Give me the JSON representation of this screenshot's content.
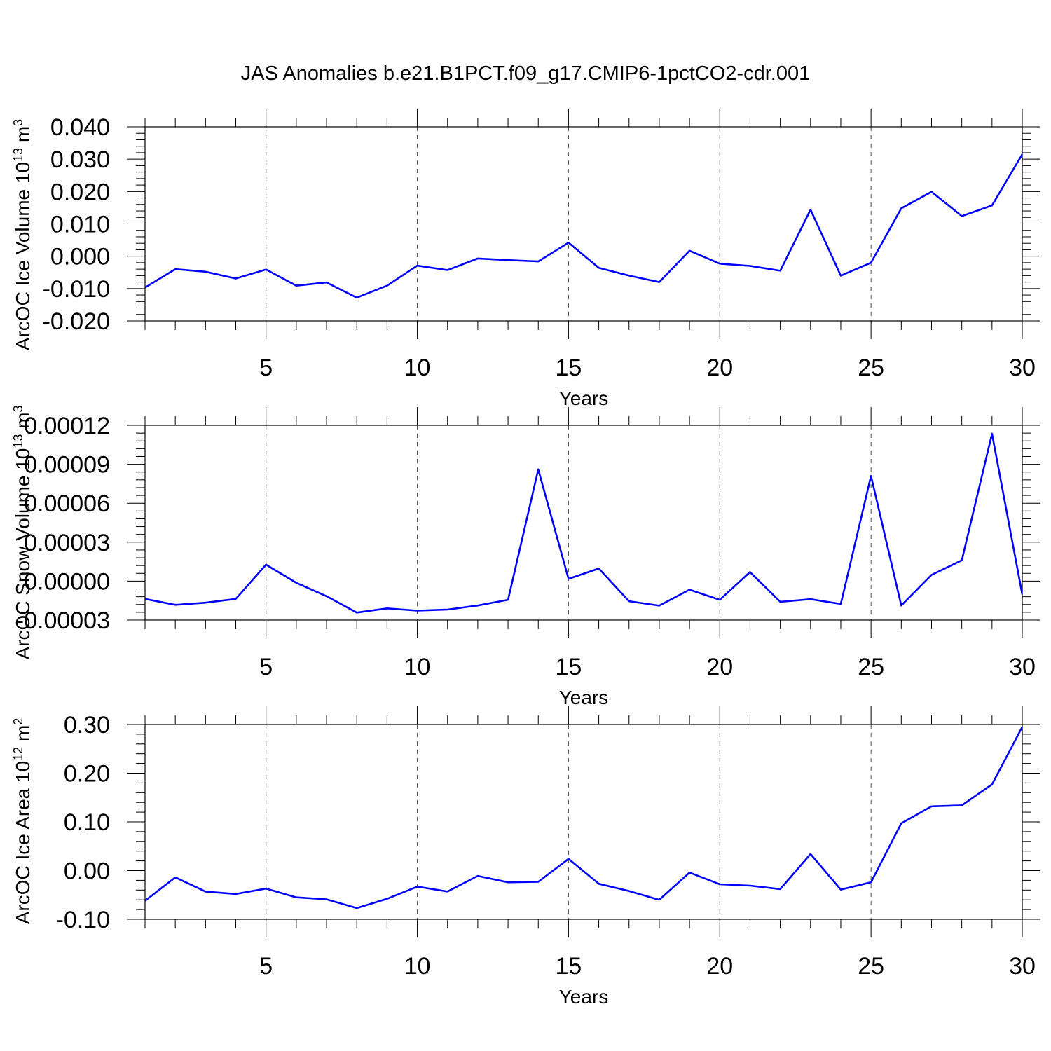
{
  "title": "JAS Anomalies b.e21.B1PCT.f09_g17.CMIP6-1pctCO2-cdr.001",
  "colors": {
    "line": "#0000ff",
    "axis": "#000000"
  },
  "chart_data": [
    {
      "type": "line",
      "ylabel": "ArcOC Ice Volume 10",
      "ylabel_sup": "13",
      "ylabel_unit": " m",
      "ylabel_unit_sup": "3",
      "xlabel": "Years",
      "xlim": [
        1,
        30
      ],
      "ylim": [
        -0.02,
        0.04
      ],
      "xticks": [
        5,
        10,
        15,
        20,
        25,
        30
      ],
      "xtick_labels": [
        "5",
        "10",
        "15",
        "20",
        "25",
        "30"
      ],
      "yticks": [
        -0.02,
        -0.01,
        0.0,
        0.01,
        0.02,
        0.03,
        0.04
      ],
      "ytick_labels": [
        "-0.020",
        "-0.010",
        "0.000",
        "0.010",
        "0.020",
        "0.030",
        "0.040"
      ],
      "grid": "vertical dashed",
      "x": [
        1,
        2,
        3,
        4,
        5,
        6,
        7,
        8,
        9,
        10,
        11,
        12,
        13,
        14,
        15,
        16,
        17,
        18,
        19,
        20,
        21,
        22,
        23,
        24,
        25,
        26,
        27,
        28,
        29,
        30
      ],
      "y": [
        -0.0097,
        -0.004,
        -0.0048,
        -0.0069,
        -0.0041,
        -0.0091,
        -0.0081,
        -0.0128,
        -0.0091,
        -0.0029,
        -0.0043,
        -0.0007,
        -0.0012,
        -0.0016,
        0.0042,
        -0.0036,
        -0.006,
        -0.008,
        0.0017,
        -0.0023,
        -0.003,
        -0.0045,
        0.0144,
        -0.006,
        -0.002,
        0.0148,
        0.0199,
        0.0124,
        0.0157,
        0.0315
      ]
    },
    {
      "type": "line",
      "ylabel": "ArcOC Snow Volume 10",
      "ylabel_sup": "13",
      "ylabel_unit": " m",
      "ylabel_unit_sup": "3",
      "xlabel": "Years",
      "xlim": [
        1,
        30
      ],
      "ylim": [
        -3e-05,
        0.00012
      ],
      "xticks": [
        5,
        10,
        15,
        20,
        25,
        30
      ],
      "xtick_labels": [
        "5",
        "10",
        "15",
        "20",
        "25",
        "30"
      ],
      "yticks": [
        -3e-05,
        0.0,
        3e-05,
        6e-05,
        9e-05,
        0.00012
      ],
      "ytick_labels": [
        "-0.00003",
        "0.00000",
        "0.00003",
        "0.00006",
        "0.00009",
        "0.00012"
      ],
      "grid": "vertical dashed",
      "x": [
        1,
        2,
        3,
        4,
        5,
        6,
        7,
        8,
        9,
        10,
        11,
        12,
        13,
        14,
        15,
        16,
        17,
        18,
        19,
        20,
        21,
        22,
        23,
        24,
        25,
        26,
        27,
        28,
        29,
        30
      ],
      "y": [
        -1.37e-05,
        -1.83e-05,
        -1.66e-05,
        -1.37e-05,
        1.27e-05,
        -1.3e-06,
        -1.16e-05,
        -2.42e-05,
        -2.1e-05,
        -2.27e-05,
        -2.19e-05,
        -1.88e-05,
        -1.44e-05,
        8.6e-05,
        1.8e-06,
        9.7e-06,
        -1.55e-05,
        -1.89e-05,
        -6.6e-06,
        -1.44e-05,
        7e-06,
        -1.59e-05,
        -1.39e-05,
        -1.76e-05,
        8.1e-05,
        -1.88e-05,
        4.8e-06,
        1.6e-05,
        0.0001135,
        -1.03e-05
      ]
    },
    {
      "type": "line",
      "ylabel": "ArcOC Ice Area 10",
      "ylabel_sup": "12",
      "ylabel_unit": " m",
      "ylabel_unit_sup": "2",
      "xlabel": "Years",
      "xlim": [
        1,
        30
      ],
      "ylim": [
        -0.1,
        0.3
      ],
      "xticks": [
        5,
        10,
        15,
        20,
        25,
        30
      ],
      "xtick_labels": [
        "5",
        "10",
        "15",
        "20",
        "25",
        "30"
      ],
      "yticks": [
        -0.1,
        0.0,
        0.1,
        0.2,
        0.3
      ],
      "ytick_labels": [
        "-0.10",
        "0.00",
        "0.10",
        "0.20",
        "0.30"
      ],
      "grid": "vertical dashed",
      "x": [
        1,
        2,
        3,
        4,
        5,
        6,
        7,
        8,
        9,
        10,
        11,
        12,
        13,
        14,
        15,
        16,
        17,
        18,
        19,
        20,
        21,
        22,
        23,
        24,
        25,
        26,
        27,
        28,
        29,
        30
      ],
      "y": [
        -0.062,
        -0.014,
        -0.043,
        -0.048,
        -0.037,
        -0.055,
        -0.059,
        -0.077,
        -0.058,
        -0.033,
        -0.043,
        -0.011,
        -0.024,
        -0.023,
        0.024,
        -0.027,
        -0.042,
        -0.06,
        -0.004,
        -0.028,
        -0.031,
        -0.038,
        0.034,
        -0.039,
        -0.024,
        0.097,
        0.132,
        0.134,
        0.177,
        0.295
      ]
    }
  ]
}
